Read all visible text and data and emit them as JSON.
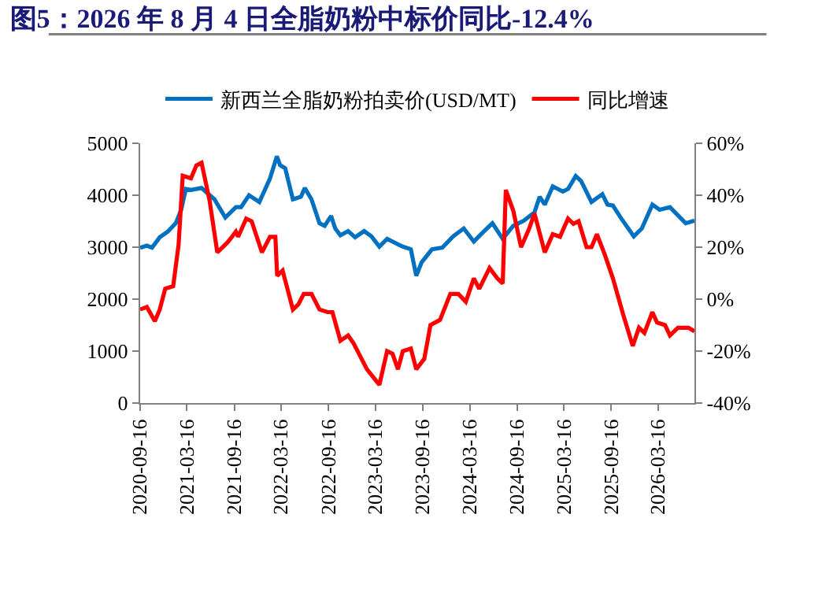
{
  "chart_data": {
    "type": "line",
    "title": "图5：2026 年 8 月 4 日全脂奶粉中标价同比-12.4%",
    "xlim": [
      "2020-09-16",
      "2026-08-04"
    ],
    "xticks": [
      "2020-09-16",
      "2021-03-16",
      "2021-09-16",
      "2022-03-16",
      "2022-09-16",
      "2023-03-16",
      "2023-09-16",
      "2024-03-16",
      "2024-09-16",
      "2025-03-16",
      "2025-09-16",
      "2026-03-16"
    ],
    "ylim": [
      0,
      5000
    ],
    "yticks": [
      0,
      1000,
      2000,
      3000,
      4000,
      5000
    ],
    "y2lim": [
      -40,
      60
    ],
    "y2ticks": [
      {
        "value": -40,
        "label": "-40%"
      },
      {
        "value": -20,
        "label": "-20%"
      },
      {
        "value": 0,
        "label": "0%"
      },
      {
        "value": 20,
        "label": "20%"
      },
      {
        "value": 40,
        "label": "40%"
      },
      {
        "value": 60,
        "label": "60%"
      }
    ],
    "legend": "top",
    "series": [
      {
        "name": "新西兰全脂奶粉拍卖价(USD/MT)",
        "color": "#0070c0",
        "x": [
          "2020-09-16",
          "2020-10-12",
          "2020-11-01",
          "2020-12-01",
          "2021-01-01",
          "2021-02-01",
          "2021-02-22",
          "2021-03-12",
          "2021-04-01",
          "2021-05-12",
          "2021-07-01",
          "2021-08-12",
          "2021-09-22",
          "2021-10-12",
          "2021-11-12",
          "2021-12-22",
          "2022-02-01",
          "2022-02-28",
          "2022-03-12",
          "2022-04-01",
          "2022-05-01",
          "2022-06-01",
          "2022-06-16",
          "2022-07-12",
          "2022-08-12",
          "2022-09-01",
          "2022-09-26",
          "2022-10-12",
          "2022-11-01",
          "2022-12-01",
          "2022-12-28",
          "2023-02-01",
          "2023-03-01",
          "2023-04-01",
          "2023-05-01",
          "2023-07-01",
          "2023-08-01",
          "2023-08-22",
          "2023-09-12",
          "2023-10-22",
          "2023-12-01",
          "2024-01-12",
          "2024-02-22",
          "2024-04-01",
          "2024-05-01",
          "2024-06-12",
          "2024-07-22",
          "2024-09-01",
          "2024-10-12",
          "2024-11-22",
          "2024-12-12",
          "2025-01-01",
          "2025-02-01",
          "2025-03-12",
          "2025-04-01",
          "2025-05-01",
          "2025-05-22",
          "2025-07-01",
          "2025-08-12",
          "2025-09-01",
          "2025-09-22",
          "2025-10-22",
          "2025-12-12",
          "2026-01-12",
          "2026-02-22",
          "2026-03-22",
          "2026-05-01",
          "2026-07-01",
          "2026-08-04"
        ],
        "values": [
          2990,
          3030,
          2990,
          3190,
          3300,
          3460,
          3720,
          4120,
          4100,
          4140,
          3920,
          3570,
          3770,
          3770,
          4000,
          3870,
          4320,
          4750,
          4580,
          4520,
          3920,
          3970,
          4140,
          3920,
          3460,
          3410,
          3600,
          3360,
          3230,
          3310,
          3190,
          3310,
          3210,
          3010,
          3160,
          3010,
          2960,
          2450,
          2710,
          2960,
          2990,
          3210,
          3360,
          3110,
          3260,
          3460,
          3160,
          3410,
          3510,
          3670,
          3970,
          3820,
          4170,
          4070,
          4120,
          4370,
          4270,
          3870,
          4020,
          3820,
          3800,
          3570,
          3210,
          3360,
          3820,
          3720,
          3770,
          3460,
          3510
        ]
      },
      {
        "name": "同比增速",
        "color": "#ff0000",
        "axis": "y2",
        "x": [
          "2020-09-16",
          "2020-10-12",
          "2020-11-12",
          "2020-12-01",
          "2020-12-22",
          "2021-01-22",
          "2021-02-12",
          "2021-02-28",
          "2021-04-01",
          "2021-04-22",
          "2021-05-12",
          "2021-06-12",
          "2021-07-12",
          "2021-08-22",
          "2021-09-22",
          "2021-10-01",
          "2021-11-01",
          "2021-11-22",
          "2022-01-01",
          "2022-02-01",
          "2022-02-22",
          "2022-03-01",
          "2022-03-22",
          "2022-05-01",
          "2022-05-22",
          "2022-06-12",
          "2022-07-12",
          "2022-08-12",
          "2022-09-12",
          "2022-10-01",
          "2022-11-01",
          "2022-12-01",
          "2022-12-22",
          "2023-02-12",
          "2023-04-01",
          "2023-05-01",
          "2023-05-22",
          "2023-06-12",
          "2023-07-01",
          "2023-08-01",
          "2023-08-22",
          "2023-09-22",
          "2023-10-16",
          "2023-11-22",
          "2024-01-01",
          "2024-02-01",
          "2024-03-01",
          "2024-04-01",
          "2024-04-22",
          "2024-06-01",
          "2024-07-01",
          "2024-07-22",
          "2024-08-03",
          "2024-09-01",
          "2024-10-01",
          "2024-11-01",
          "2024-11-22",
          "2025-01-01",
          "2025-02-01",
          "2025-03-01",
          "2025-04-01",
          "2025-04-22",
          "2025-05-12",
          "2025-06-12",
          "2025-07-01",
          "2025-07-22",
          "2025-08-22",
          "2025-09-22",
          "2025-11-01",
          "2025-12-08",
          "2026-01-01",
          "2026-01-22",
          "2026-02-22",
          "2026-03-12",
          "2026-04-12",
          "2026-05-01",
          "2026-06-01",
          "2026-07-12",
          "2026-08-04"
        ],
        "values": [
          -4,
          -3,
          -8.5,
          -4,
          4,
          5,
          21,
          47.5,
          46.5,
          51.5,
          52.5,
          38,
          18,
          22,
          26,
          24,
          31,
          30,
          18,
          24,
          24,
          9,
          11,
          -4,
          -2,
          2,
          2,
          -4,
          -5,
          -5,
          -16,
          -14,
          -17,
          -27,
          -33,
          -20,
          -21,
          -27,
          -20,
          -19,
          -27,
          -23,
          -10,
          -8,
          2,
          2,
          -1,
          8,
          4,
          12,
          8,
          6,
          42,
          34,
          20,
          27,
          33,
          18,
          25,
          24,
          31,
          29,
          30,
          20,
          20,
          25,
          17,
          8,
          -6,
          -18,
          -11,
          -13,
          -5,
          -9,
          -10,
          -14,
          -11,
          -11,
          -12.4
        ]
      }
    ]
  }
}
